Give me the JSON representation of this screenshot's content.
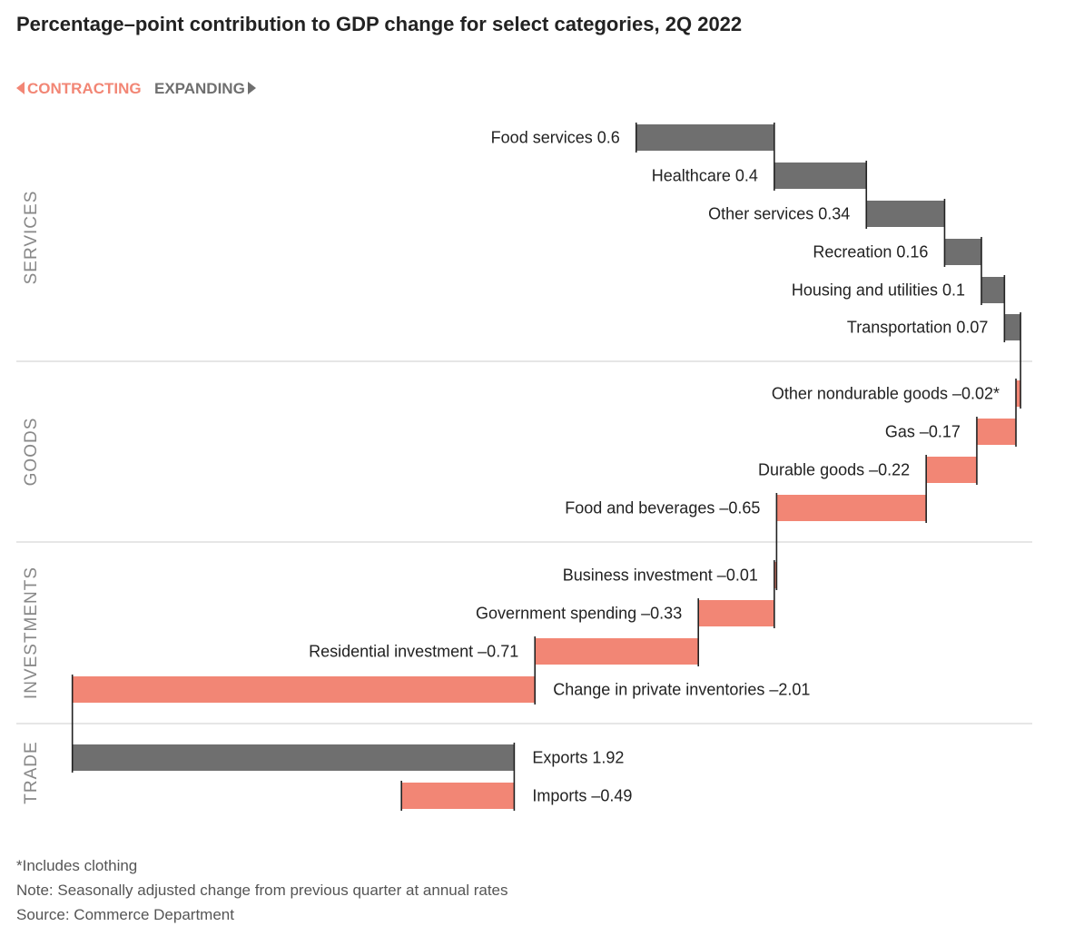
{
  "title": "Percentage–point contribution to GDP change for select categories, 2Q 2022",
  "legend": {
    "contracting": "CONTRACTING",
    "expanding": "EXPANDING"
  },
  "colors": {
    "expanding": "#6f6f6f",
    "contracting": "#f28675",
    "divider": "#dddddd",
    "text": "#222222",
    "section": "#888888"
  },
  "chart_data": {
    "type": "bar",
    "subtype": "waterfall",
    "title": "Percentage–point contribution to GDP change for select categories, 2Q 2022",
    "sections": [
      "SERVICES",
      "GOODS",
      "INVESTMENTS",
      "TRADE"
    ],
    "steps": [
      {
        "section": "SERVICES",
        "label": "Food services 0.6",
        "value": 0.6,
        "start": -0.64,
        "end": -0.04
      },
      {
        "section": "SERVICES",
        "label": "Healthcare 0.4",
        "value": 0.4,
        "start": -0.04,
        "end": 0.36
      },
      {
        "section": "SERVICES",
        "label": "Other services 0.34",
        "value": 0.34,
        "start": 0.36,
        "end": 0.7
      },
      {
        "section": "SERVICES",
        "label": "Recreation 0.16",
        "value": 0.16,
        "start": 0.7,
        "end": 0.86
      },
      {
        "section": "SERVICES",
        "label": "Housing and utilities 0.1",
        "value": 0.1,
        "start": 0.86,
        "end": 0.96
      },
      {
        "section": "SERVICES",
        "label": "Transportation 0.07",
        "value": 0.07,
        "start": 0.96,
        "end": 1.03
      },
      {
        "section": "GOODS",
        "label": "Other nondurable goods –0.02*",
        "value": -0.02,
        "start": 1.03,
        "end": 1.01
      },
      {
        "section": "GOODS",
        "label": "Gas –0.17",
        "value": -0.17,
        "start": 1.01,
        "end": 0.84
      },
      {
        "section": "GOODS",
        "label": "Durable goods –0.22",
        "value": -0.22,
        "start": 0.84,
        "end": 0.62
      },
      {
        "section": "GOODS",
        "label": "Food and beverages –0.65",
        "value": -0.65,
        "start": 0.62,
        "end": -0.03
      },
      {
        "section": "INVESTMENTS",
        "label": "Business investment –0.01",
        "value": -0.01,
        "start": -0.03,
        "end": -0.04
      },
      {
        "section": "INVESTMENTS",
        "label": "Government spending –0.33",
        "value": -0.33,
        "start": -0.04,
        "end": -0.37
      },
      {
        "section": "INVESTMENTS",
        "label": "Residential investment –0.71",
        "value": -0.71,
        "start": -0.37,
        "end": -1.08
      },
      {
        "section": "INVESTMENTS",
        "label": "Change in private inventories –2.01",
        "value": -2.01,
        "start": -1.08,
        "end": -3.09
      },
      {
        "section": "TRADE",
        "label": "Exports 1.92",
        "value": 1.92,
        "start": -3.09,
        "end": -1.17
      },
      {
        "section": "TRADE",
        "label": "Imports –0.49",
        "value": -0.49,
        "start": -1.17,
        "end": -1.66
      }
    ]
  },
  "notes": [
    "*Includes clothing",
    "Note: Seasonally adjusted change from previous quarter at annual rates",
    "Source: Commerce Department"
  ]
}
